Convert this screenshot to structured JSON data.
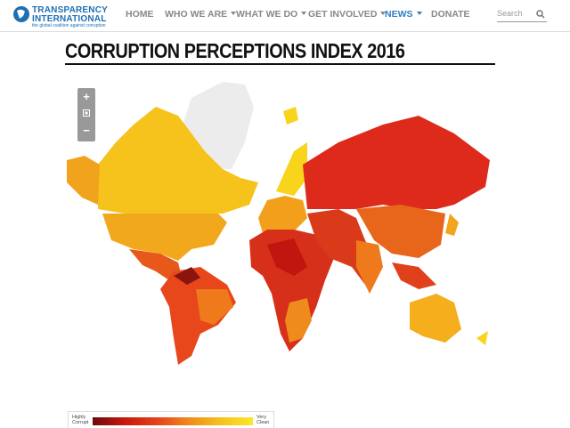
{
  "header": {
    "logo": {
      "line1": "TRANSPARENCY",
      "line2": "INTERNATIONAL",
      "tagline": "the global coalition against corruption"
    },
    "nav": [
      "HOME",
      "WHO WE ARE",
      "WHAT WE DO",
      "GET INVOLVED",
      "NEWS",
      "DONATE"
    ],
    "search": "Search"
  },
  "page": {
    "title": "CORRUPTION PERCEPTIONS INDEX 2016"
  },
  "map": {
    "zoom_in": "+",
    "zoom_out": "−"
  },
  "legend": {
    "low": "Highly Corrupt",
    "high": "Very Clean"
  }
}
